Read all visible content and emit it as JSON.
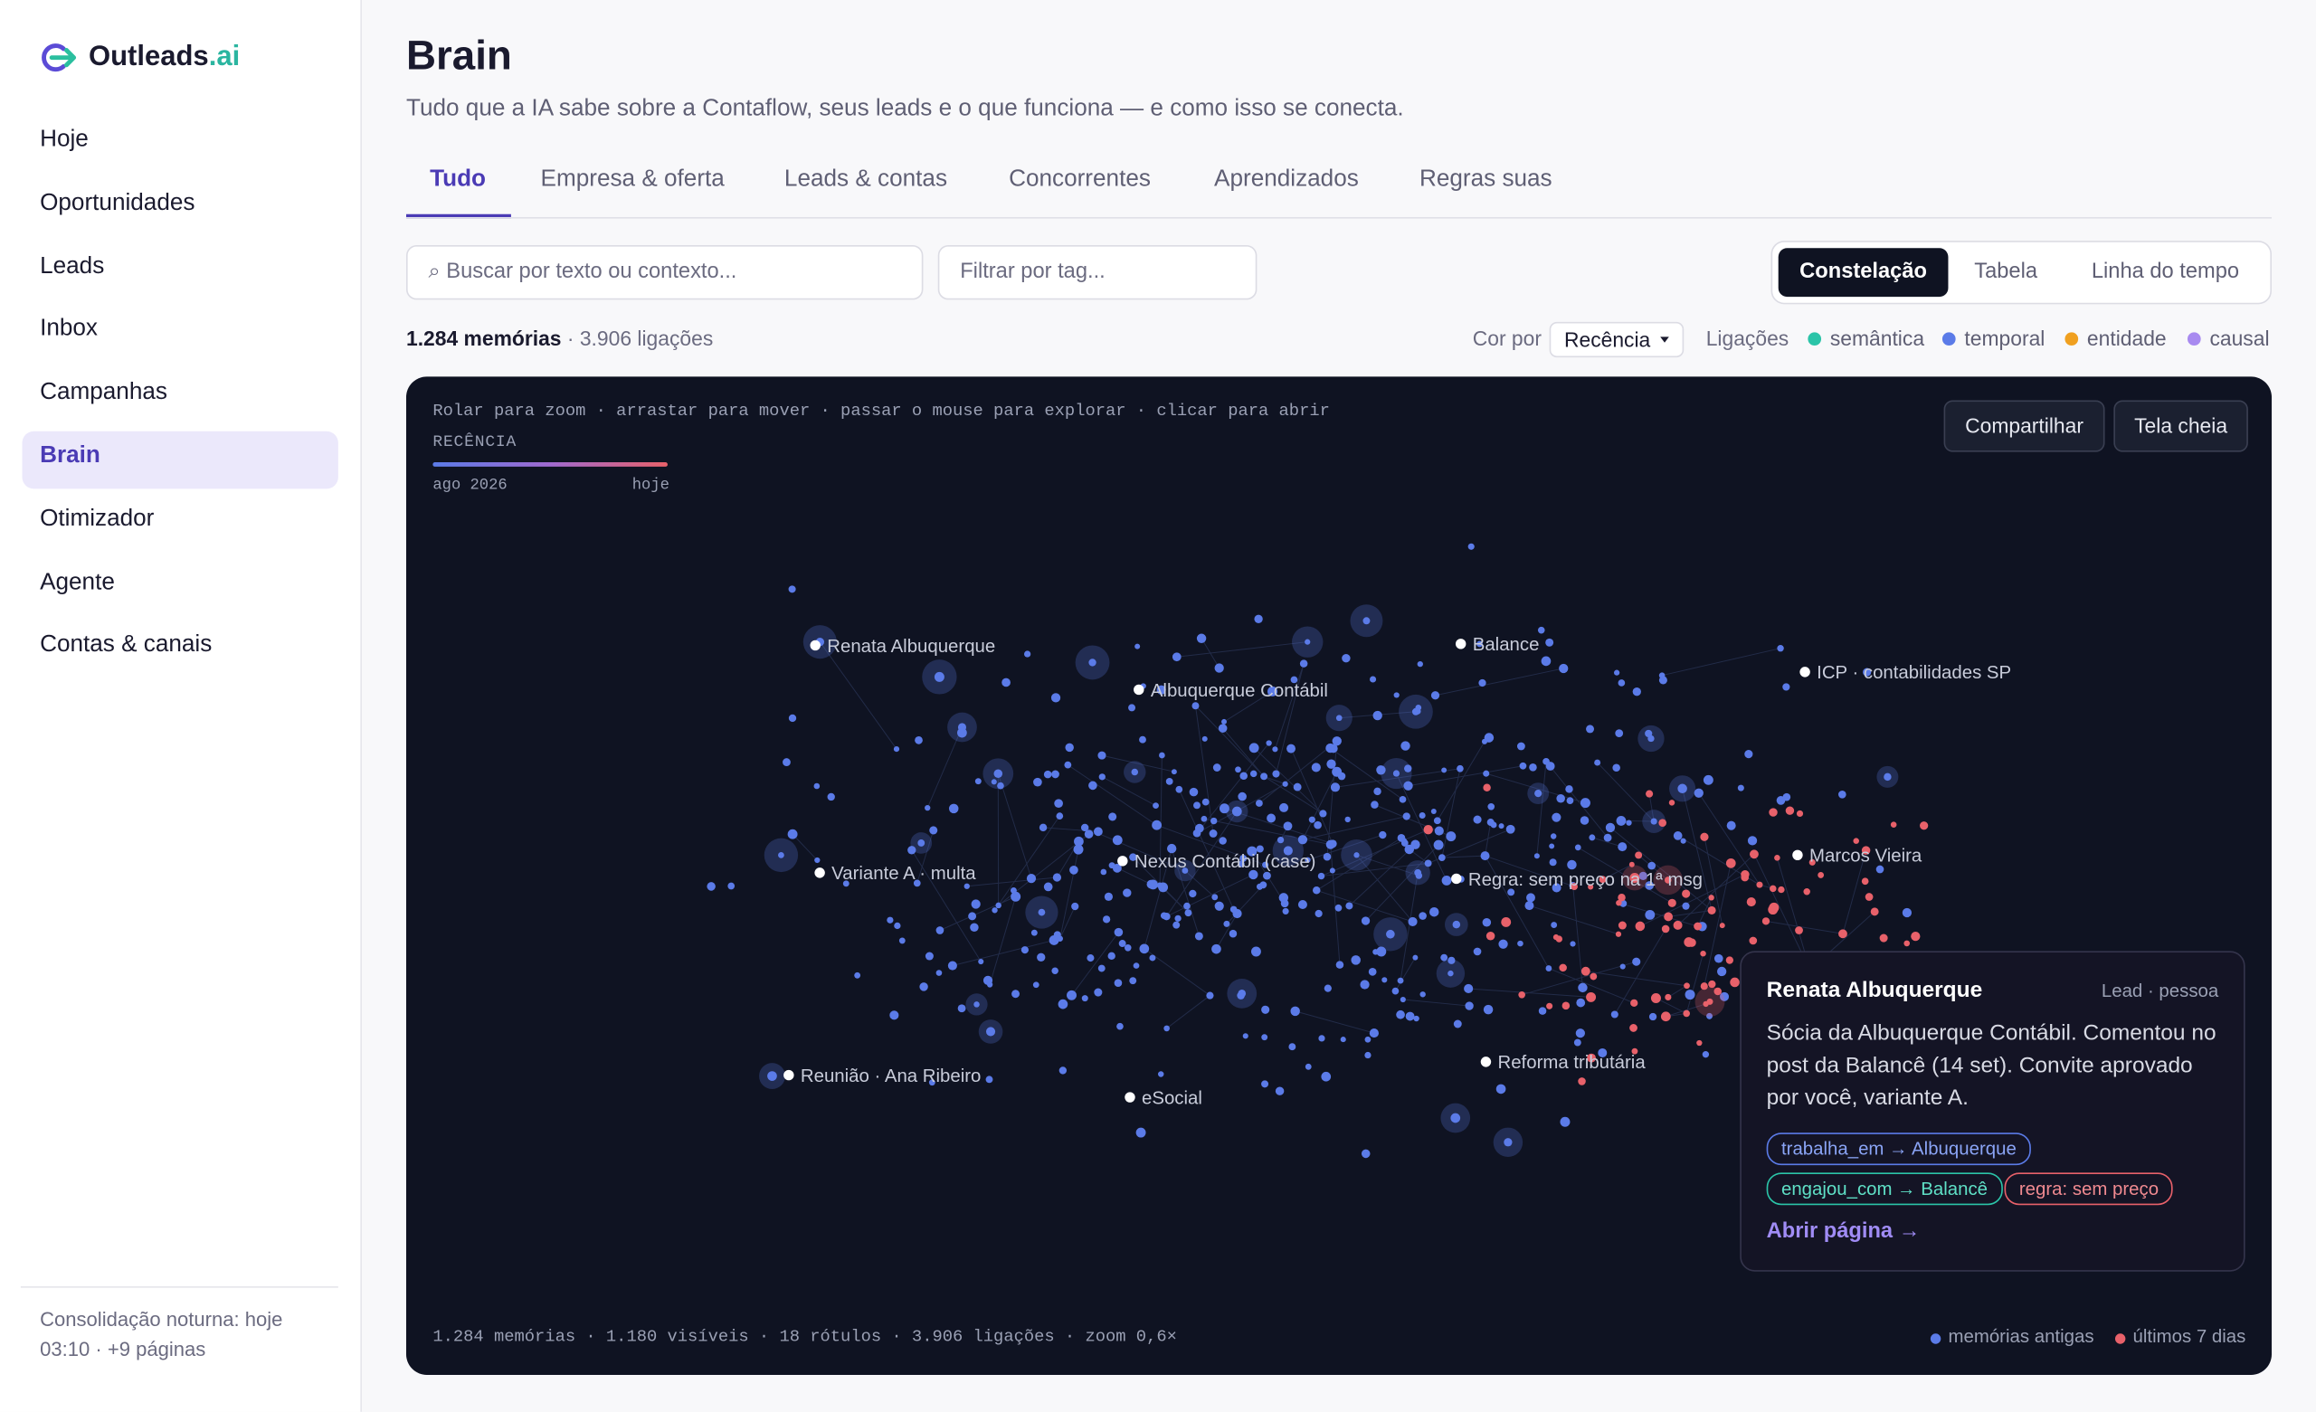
{
  "sidebar": {
    "logo": {
      "name": "Outleads",
      "suffix": ".ai"
    },
    "nav": [
      "Hoje",
      "Oportunidades",
      "Leads",
      "Inbox",
      "Campanhas",
      "Brain",
      "Otimizador",
      "Agente",
      "Contas & canais"
    ],
    "footer": "Consolidação noturna: hoje 03:10 · +9 páginas"
  },
  "header": {
    "title": "Brain",
    "subtitle": "Tudo que a IA sabe sobre a Contaflow, seus leads e o que funciona — e como isso se conecta."
  },
  "tabs": [
    "Tudo",
    "Empresa & oferta",
    "Leads & contas",
    "Concorrentes",
    "Aprendizados",
    "Regras suas"
  ],
  "search_placeholder": "⌕ Buscar por texto ou contexto...",
  "tag_placeholder": "Filtrar por tag...",
  "views": [
    "Constelação",
    "Tabela",
    "Linha do tempo"
  ],
  "stats": {
    "memories": "1.284 memórias",
    "links": "· 3.906 ligações"
  },
  "color_by": {
    "label": "Cor por",
    "value": "Recência"
  },
  "legend": {
    "label": "Ligações",
    "items": [
      "semântica",
      "temporal",
      "entidade",
      "causal"
    ]
  },
  "graph": {
    "hint": "Rolar para zoom · arrastar para mover · passar o mouse para explorar · clicar para abrir",
    "recency_label": "RECÊNCIA",
    "scale_start": "ago 2026",
    "scale_end": "hoje",
    "actions": [
      "Compartilhar",
      "Tela cheia"
    ],
    "nodes": [
      "Renata Albuquerque",
      "Albuquerque Contábil",
      "Balance",
      "ICP · contabilidades SP",
      "Variante A · multa",
      "Nexus Contábil (case)",
      "Regra: sem preço na 1ª msg",
      "Marcos Vieira",
      "Reunião · Ana Ribeiro",
      "eSocial",
      "Reforma tributária"
    ],
    "footer": "1.284 memórias · 1.180 visíveis · 18 rótulos · 3.906 ligações · zoom 0,6×",
    "key": [
      "memórias antigas",
      "últimos 7 dias"
    ]
  },
  "tooltip": {
    "title": "Renata Albuquerque",
    "meta": "Lead · pessoa",
    "body": "Sócia da Albuquerque Contábil. Comentou no post da Balancê (14 set). Convite aprovado por você, variante A.",
    "tags": [
      "trabalha_em → Albuquerque",
      "engajou_com → Balancê",
      "regra: sem preço"
    ],
    "link": "Abrir página →"
  }
}
